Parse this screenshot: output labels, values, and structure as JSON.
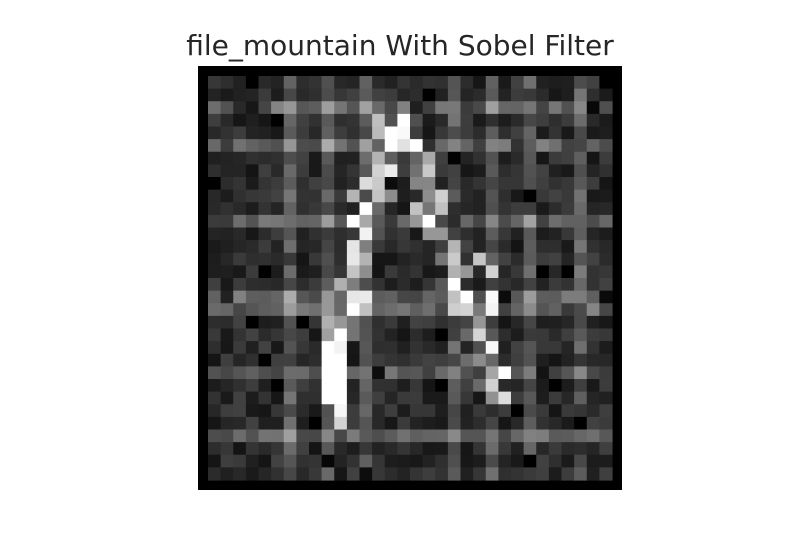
{
  "figure": {
    "title": "file_mountain With Sobel Filter"
  },
  "image": {
    "description_kind": "grayscale edge-magnitude map",
    "grid_cells": 32,
    "background_color": "#000000",
    "edge_color": "#ffffff"
  }
}
